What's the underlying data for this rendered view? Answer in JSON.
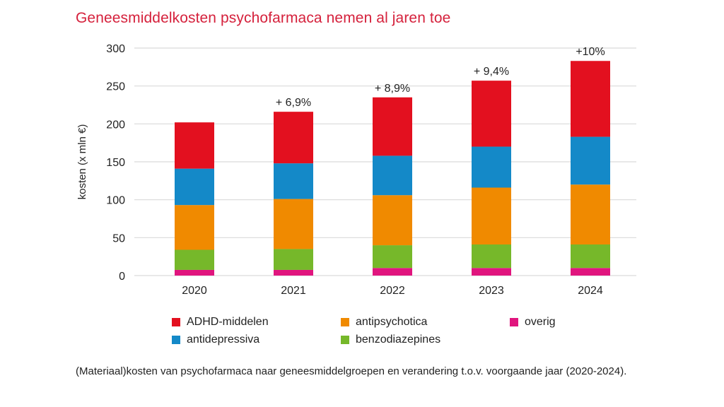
{
  "title": "Geneesmiddelkosten psychofarmaca nemen al jaren toe",
  "caption": "(Materiaal)kosten van psychofarmaca naar geneesmiddelgroepen en verandering t.o.v. voorgaande jaar (2020-2024).",
  "chart_data": {
    "type": "bar",
    "stacked": true,
    "title": "Geneesmiddelkosten psychofarmaca nemen al jaren toe",
    "xlabel": "",
    "ylabel": "kosten (x mln €)",
    "ylim": [
      0,
      300
    ],
    "yticks": [
      0,
      50,
      100,
      150,
      200,
      250,
      300
    ],
    "grid": true,
    "legend_position": "bottom",
    "categories": [
      "2020",
      "2021",
      "2022",
      "2023",
      "2024"
    ],
    "series": [
      {
        "name": "overig",
        "color": "#e0157e",
        "values": [
          7.5,
          7.5,
          10,
          10,
          10
        ]
      },
      {
        "name": "benzodiazepines",
        "color": "#76b82a",
        "values": [
          26.5,
          27.5,
          30,
          31,
          31
        ]
      },
      {
        "name": "antipsychotica",
        "color": "#f08a00",
        "values": [
          59,
          66,
          66,
          75,
          79
        ]
      },
      {
        "name": "antidepressiva",
        "color": "#1489c8",
        "values": [
          48,
          47,
          52,
          54,
          63
        ]
      },
      {
        "name": "ADHD-middelen",
        "color": "#e3101f",
        "values": [
          61,
          68,
          77,
          87,
          100
        ]
      }
    ],
    "totals": [
      202,
      216,
      235,
      257,
      283
    ],
    "annotations": [
      "",
      "+ 6,9%",
      "+ 8,9%",
      "+ 9,4%",
      "+10%"
    ]
  },
  "legend": [
    {
      "name": "ADHD-middelen",
      "color": "#e3101f"
    },
    {
      "name": "antipsychotica",
      "color": "#f08a00"
    },
    {
      "name": "overig",
      "color": "#e0157e"
    },
    {
      "name": "antidepressiva",
      "color": "#1489c8"
    },
    {
      "name": "benzodiazepines",
      "color": "#76b82a"
    }
  ]
}
